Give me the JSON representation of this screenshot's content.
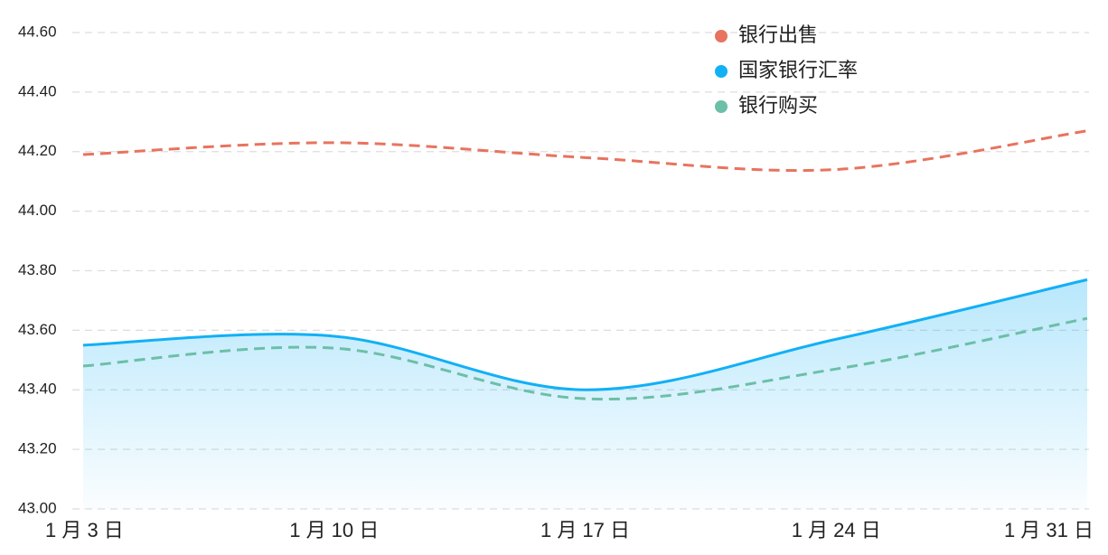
{
  "chart_data": {
    "type": "line",
    "categories": [
      "1 月 3 日",
      "1 月 10 日",
      "1 月 17 日",
      "1 月 24 日",
      "1 月 31 日"
    ],
    "series": [
      {
        "name": "银行出售",
        "color": "#e8735f",
        "dashed": true,
        "values": [
          44.19,
          44.23,
          44.18,
          44.14,
          44.27
        ]
      },
      {
        "name": "国家银行汇率",
        "color": "#12b0f5",
        "area": true,
        "values": [
          43.55,
          43.58,
          43.4,
          43.57,
          43.77
        ]
      },
      {
        "name": "银行购买",
        "color": "#6cbfa8",
        "dashed": true,
        "values": [
          43.48,
          43.54,
          43.37,
          43.47,
          43.64
        ]
      }
    ],
    "ylim": [
      43.0,
      44.6
    ],
    "yticks": [
      {
        "value": 43.0,
        "label": "43.00"
      },
      {
        "value": 43.2,
        "label": "43.20"
      },
      {
        "value": 43.4,
        "label": "43.40"
      },
      {
        "value": 43.6,
        "label": "43.60"
      },
      {
        "value": 43.8,
        "label": "43.80"
      },
      {
        "value": 44.0,
        "label": "44.00"
      },
      {
        "value": 44.2,
        "label": "44.20"
      },
      {
        "value": 44.4,
        "label": "44.40"
      },
      {
        "value": 44.6,
        "label": "44.60"
      }
    ],
    "grid": true
  }
}
